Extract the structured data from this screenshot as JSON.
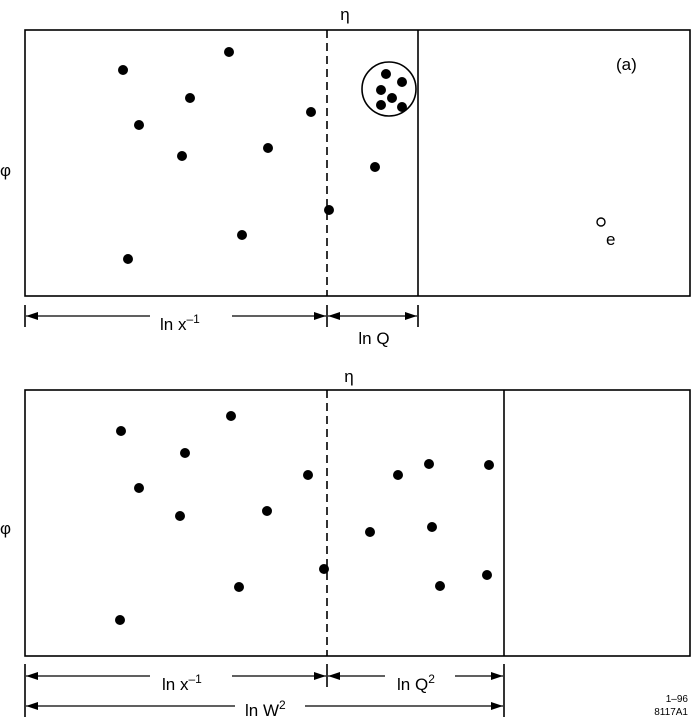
{
  "panel_a": {
    "eta": "η",
    "phi": "φ",
    "tag": "(a)",
    "electron": "e",
    "ln_x": {
      "base": "ln x",
      "sup": "–1"
    },
    "ln_q": "ln Q"
  },
  "panel_b": {
    "eta": "η",
    "phi": "φ",
    "ln_x": {
      "base": "ln x",
      "sup": "–1"
    },
    "ln_q2": {
      "base": "ln Q",
      "sup": "2"
    },
    "ln_w2": {
      "base": "ln W",
      "sup": "2"
    }
  },
  "footer": {
    "date": "1–96",
    "code": "8117A1"
  }
}
